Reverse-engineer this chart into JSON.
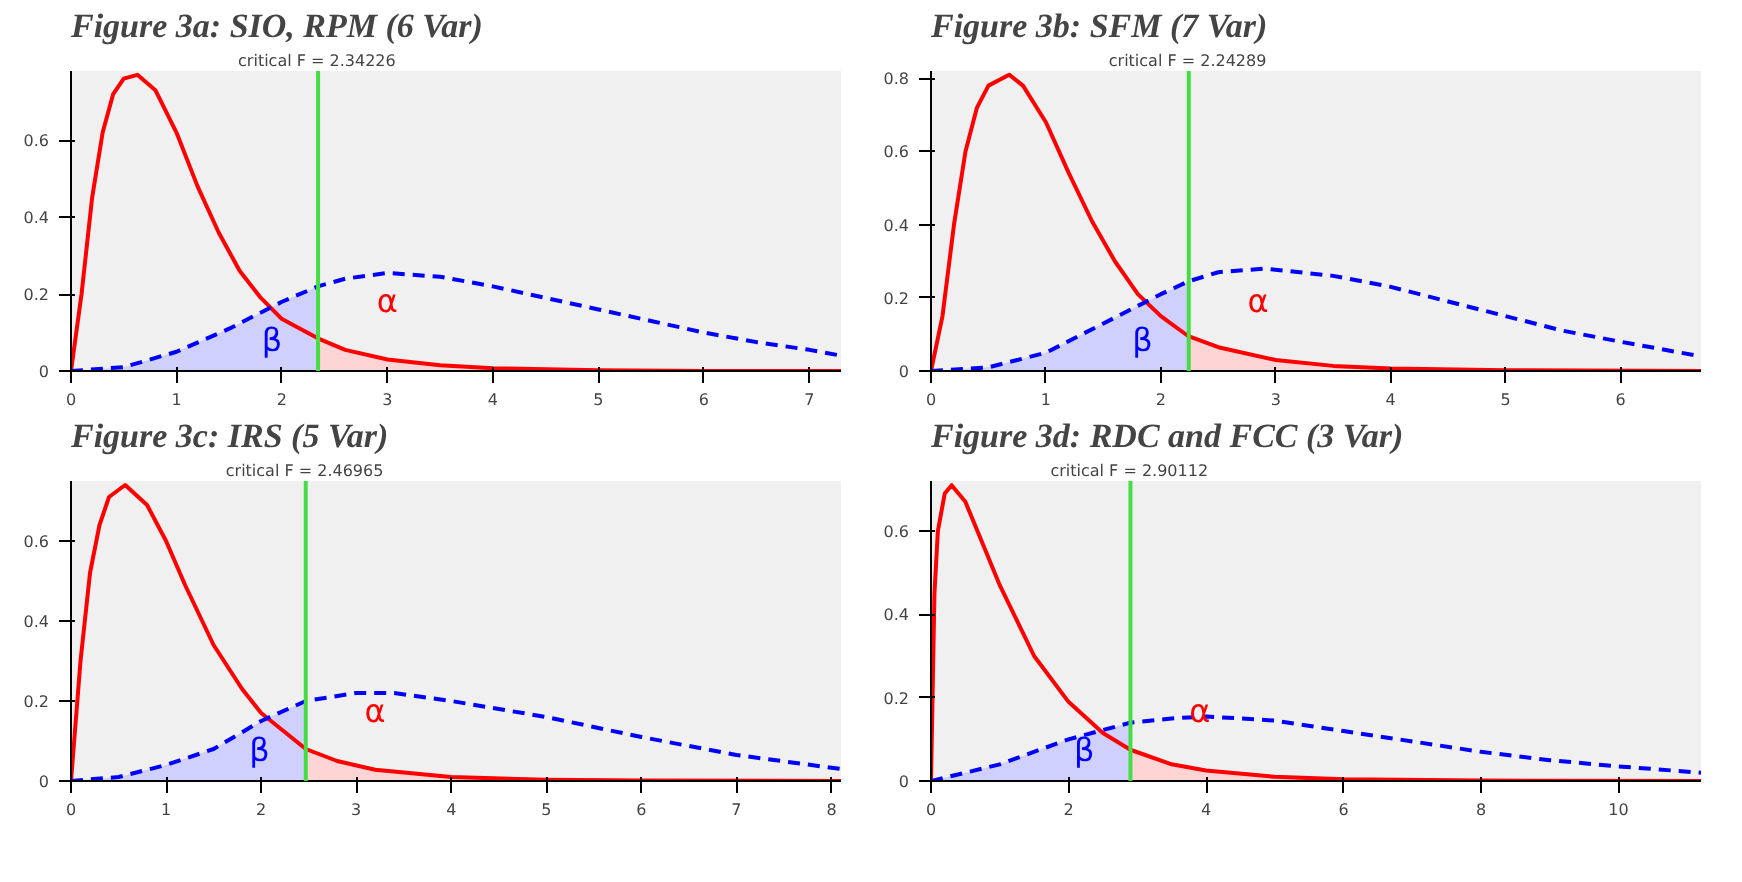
{
  "chart_data": [
    {
      "type": "line",
      "title": "Figure 3a: SIO, RPM (6 Var)",
      "xlim": [
        0,
        7.3
      ],
      "xticks": [
        0,
        1,
        2,
        3,
        4,
        5,
        6,
        7
      ],
      "ylim": [
        0,
        0.78
      ],
      "yticks": [
        0,
        0.2,
        0.4,
        0.6
      ],
      "series": [
        {
          "type": "area",
          "color": "#ccccff",
          "x": [
            0,
            0.5,
            1.0,
            1.5,
            2.0,
            2.34
          ],
          "values": [
            0,
            0.01,
            0.05,
            0.11,
            0.18,
            0.22
          ]
        },
        {
          "type": "area",
          "color": "#ffd0d0",
          "x": [
            2.34,
            2.6,
            3.0,
            3.5,
            4,
            5,
            6,
            7.3
          ],
          "values": [
            0.085,
            0.055,
            0.03,
            0.015,
            0.007,
            0.002,
            0,
            0
          ]
        },
        {
          "color": "#ff0000",
          "line_style": "solid",
          "x": [
            0,
            0.1,
            0.2,
            0.3,
            0.4,
            0.5,
            0.63,
            0.8,
            1.0,
            1.2,
            1.4,
            1.6,
            1.8,
            2.0,
            2.34,
            2.6,
            3.0,
            3.5,
            4,
            5,
            6,
            7.3
          ],
          "values": [
            0,
            0.2,
            0.45,
            0.62,
            0.72,
            0.76,
            0.77,
            0.73,
            0.62,
            0.48,
            0.36,
            0.26,
            0.19,
            0.135,
            0.085,
            0.055,
            0.03,
            0.015,
            0.007,
            0.002,
            0,
            0
          ]
        },
        {
          "color": "#0000ff",
          "line_style": "dashed",
          "x": [
            0,
            0.5,
            1.0,
            1.5,
            2.0,
            2.34,
            2.6,
            3.0,
            3.5,
            4,
            4.5,
            5,
            5.5,
            6,
            6.5,
            7,
            7.3
          ],
          "values": [
            0,
            0.01,
            0.05,
            0.11,
            0.18,
            0.22,
            0.24,
            0.255,
            0.245,
            0.22,
            0.19,
            0.16,
            0.13,
            0.1,
            0.075,
            0.055,
            0.04
          ]
        }
      ],
      "ref_lines": [
        {
          "axis": "x",
          "value": 2.34226,
          "label": "critical F =  2.34226",
          "color": "#44dd44"
        }
      ],
      "annotations": [
        "β",
        "α"
      ]
    },
    {
      "type": "line",
      "title": "Figure 3b: SFM (7 Var)",
      "xlim": [
        0,
        6.7
      ],
      "xticks": [
        0,
        1,
        2,
        3,
        4,
        5,
        6
      ],
      "ylim": [
        0,
        0.82
      ],
      "yticks": [
        0,
        0.2,
        0.4,
        0.6,
        0.8
      ],
      "series": [
        {
          "type": "area",
          "color": "#ccccff",
          "x": [
            0,
            0.5,
            1.0,
            1.5,
            2.0,
            2.24
          ],
          "values": [
            0,
            0.01,
            0.05,
            0.13,
            0.21,
            0.245
          ]
        },
        {
          "type": "area",
          "color": "#ffd0d0",
          "x": [
            2.24,
            2.5,
            3,
            3.5,
            4,
            5,
            6.7
          ],
          "values": [
            0.095,
            0.065,
            0.03,
            0.014,
            0.007,
            0.002,
            0
          ]
        },
        {
          "color": "#ff0000",
          "line_style": "solid",
          "x": [
            0,
            0.1,
            0.2,
            0.3,
            0.4,
            0.5,
            0.68,
            0.8,
            1.0,
            1.2,
            1.4,
            1.6,
            1.8,
            2.0,
            2.24,
            2.5,
            3,
            3.5,
            4,
            5,
            6.7
          ],
          "values": [
            0,
            0.15,
            0.4,
            0.6,
            0.72,
            0.78,
            0.81,
            0.78,
            0.68,
            0.54,
            0.41,
            0.3,
            0.21,
            0.15,
            0.095,
            0.065,
            0.03,
            0.014,
            0.007,
            0.002,
            0
          ]
        },
        {
          "color": "#0000ff",
          "line_style": "dashed",
          "x": [
            0,
            0.5,
            1.0,
            1.5,
            2.0,
            2.24,
            2.5,
            2.9,
            3.5,
            4,
            4.5,
            5,
            5.5,
            6,
            6.7
          ],
          "values": [
            0,
            0.01,
            0.05,
            0.13,
            0.21,
            0.245,
            0.27,
            0.28,
            0.26,
            0.23,
            0.19,
            0.15,
            0.11,
            0.08,
            0.04
          ]
        }
      ],
      "ref_lines": [
        {
          "axis": "x",
          "value": 2.24289,
          "label": "critical F =  2.24289",
          "color": "#44dd44"
        }
      ],
      "annotations": [
        "β",
        "α"
      ]
    },
    {
      "type": "line",
      "title": "Figure 3c: IRS (5 Var)",
      "xlim": [
        0,
        8.1
      ],
      "xticks": [
        0,
        1,
        2,
        3,
        4,
        5,
        6,
        7,
        8
      ],
      "ylim": [
        0,
        0.75
      ],
      "yticks": [
        0,
        0.2,
        0.4,
        0.6
      ],
      "series": [
        {
          "type": "area",
          "color": "#ccccff",
          "x": [
            0,
            0.5,
            1,
            1.5,
            2,
            2.47
          ],
          "values": [
            0,
            0.01,
            0.04,
            0.08,
            0.15,
            0.2
          ]
        },
        {
          "type": "area",
          "color": "#ffd0d0",
          "x": [
            2.47,
            2.8,
            3.2,
            4,
            5,
            6,
            8.1
          ],
          "values": [
            0.08,
            0.05,
            0.028,
            0.01,
            0.003,
            0.001,
            0
          ]
        },
        {
          "color": "#ff0000",
          "line_style": "solid",
          "x": [
            0,
            0.1,
            0.2,
            0.3,
            0.4,
            0.57,
            0.8,
            1.0,
            1.2,
            1.5,
            1.8,
            2.0,
            2.47,
            2.8,
            3.2,
            4,
            5,
            6,
            8.1
          ],
          "values": [
            0,
            0.3,
            0.52,
            0.64,
            0.71,
            0.74,
            0.69,
            0.6,
            0.49,
            0.34,
            0.23,
            0.17,
            0.08,
            0.05,
            0.028,
            0.01,
            0.003,
            0.001,
            0
          ]
        },
        {
          "color": "#0000ff",
          "line_style": "dashed",
          "x": [
            0,
            0.5,
            1,
            1.5,
            2,
            2.47,
            3,
            3.4,
            4,
            5,
            6,
            7,
            8.1
          ],
          "values": [
            0,
            0.01,
            0.04,
            0.08,
            0.15,
            0.2,
            0.22,
            0.22,
            0.2,
            0.16,
            0.11,
            0.065,
            0.03
          ]
        }
      ],
      "ref_lines": [
        {
          "axis": "x",
          "value": 2.46965,
          "label": "critical F =  2.46965",
          "color": "#44dd44"
        }
      ],
      "annotations": [
        "β",
        "α"
      ]
    },
    {
      "type": "line",
      "title": "Figure 3d: RDC and FCC (3 Var)",
      "xlim": [
        0,
        11.2
      ],
      "xticks": [
        0,
        2,
        4,
        6,
        8,
        10
      ],
      "ylim": [
        0,
        0.72
      ],
      "yticks": [
        0,
        0.2,
        0.4,
        0.6
      ],
      "series": [
        {
          "type": "area",
          "color": "#ccccff",
          "x": [
            0,
            1,
            2,
            2.9
          ],
          "values": [
            0,
            0.04,
            0.1,
            0.14
          ]
        },
        {
          "type": "area",
          "color": "#ffd0d0",
          "x": [
            2.9,
            3.5,
            4,
            5,
            6,
            8,
            11.2
          ],
          "values": [
            0.075,
            0.04,
            0.025,
            0.01,
            0.004,
            0.001,
            0
          ]
        },
        {
          "color": "#ff0000",
          "line_style": "solid",
          "x": [
            0,
            0.05,
            0.1,
            0.2,
            0.3,
            0.5,
            0.8,
            1.0,
            1.5,
            2.0,
            2.5,
            2.9,
            3.5,
            4,
            5,
            6,
            8,
            11.2
          ],
          "values": [
            0,
            0.45,
            0.6,
            0.69,
            0.71,
            0.67,
            0.55,
            0.47,
            0.3,
            0.19,
            0.115,
            0.075,
            0.04,
            0.025,
            0.01,
            0.004,
            0.001,
            0
          ]
        },
        {
          "color": "#0000ff",
          "line_style": "dashed",
          "x": [
            0,
            1,
            2,
            2.9,
            3.5,
            4,
            5,
            6,
            7,
            8,
            9,
            10,
            11.2
          ],
          "values": [
            0,
            0.04,
            0.1,
            0.14,
            0.15,
            0.155,
            0.145,
            0.12,
            0.095,
            0.07,
            0.05,
            0.035,
            0.02
          ]
        }
      ],
      "ref_lines": [
        {
          "axis": "x",
          "value": 2.90112,
          "label": "critical F =  2.90112",
          "color": "#44dd44"
        }
      ],
      "annotations": [
        "β",
        "α"
      ]
    }
  ]
}
